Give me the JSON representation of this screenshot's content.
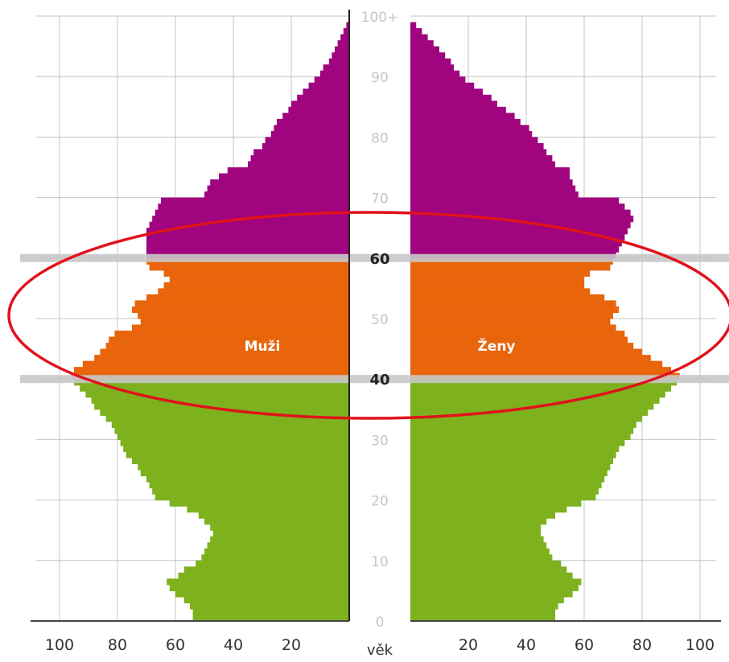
{
  "chart_data": {
    "type": "population-pyramid",
    "left_label": "Muži",
    "right_label": "Ženy",
    "center_axis_label": "věk",
    "x_ticks_left": [
      "100",
      "80",
      "60",
      "40",
      "20"
    ],
    "x_ticks_right": [
      "20",
      "40",
      "60",
      "80",
      "100"
    ],
    "x_tick_values": [
      100,
      80,
      60,
      40,
      20
    ],
    "xlim": [
      0,
      105
    ],
    "age_ticks": [
      "0",
      "10",
      "20",
      "30",
      "40",
      "50",
      "60",
      "70",
      "80",
      "90",
      "100+"
    ],
    "age_tick_values": [
      0,
      10,
      20,
      30,
      40,
      50,
      60,
      70,
      80,
      90,
      100
    ],
    "highlighted_ages": [
      40,
      60
    ],
    "ylim": [
      0,
      100
    ],
    "colors": {
      "ages_0_39": "#7db11e",
      "ages_40_59": "#e8650c",
      "ages_60_plus": "#a0047f",
      "highlight_band": "#c8c8c8",
      "ellipse": "#e0121a",
      "grid": "#c4c4c4"
    },
    "grid": true,
    "annotation": "red ellipse around ages 40–60",
    "ages": [
      0,
      1,
      2,
      3,
      4,
      5,
      6,
      7,
      8,
      9,
      10,
      11,
      12,
      13,
      14,
      15,
      16,
      17,
      18,
      19,
      20,
      21,
      22,
      23,
      24,
      25,
      26,
      27,
      28,
      29,
      30,
      31,
      32,
      33,
      34,
      35,
      36,
      37,
      38,
      39,
      40,
      41,
      42,
      43,
      44,
      45,
      46,
      47,
      48,
      49,
      50,
      51,
      52,
      53,
      54,
      55,
      56,
      57,
      58,
      59,
      60,
      61,
      62,
      63,
      64,
      65,
      66,
      67,
      68,
      69,
      70,
      71,
      72,
      73,
      74,
      75,
      76,
      77,
      78,
      79,
      80,
      81,
      82,
      83,
      84,
      85,
      86,
      87,
      88,
      89,
      90,
      91,
      92,
      93,
      94,
      95,
      96,
      97,
      98,
      99
    ],
    "series": [
      {
        "name": "Muži",
        "values": [
          54,
          54,
          55,
          57,
          60,
          62,
          63,
          59,
          57,
          53,
          51,
          50,
          49,
          48,
          47,
          48,
          50,
          52,
          56,
          62,
          67,
          68,
          69,
          70,
          72,
          73,
          75,
          77,
          78,
          79,
          80,
          81,
          82,
          84,
          86,
          88,
          89,
          91,
          93,
          95,
          96,
          95,
          92,
          88,
          86,
          84,
          83,
          81,
          75,
          72,
          73,
          75,
          74,
          70,
          66,
          64,
          62,
          64,
          69,
          70,
          70,
          70,
          70,
          70,
          70,
          69,
          68,
          67,
          66,
          65,
          50,
          49,
          48,
          45,
          42,
          35,
          34,
          33,
          30,
          29,
          27,
          26,
          25,
          23,
          21,
          20,
          18,
          16,
          14,
          12,
          10,
          9,
          7,
          6,
          5,
          4,
          3,
          2,
          1,
          0
        ]
      },
      {
        "name": "Ženy",
        "values": [
          50,
          50,
          51,
          53,
          56,
          58,
          59,
          56,
          54,
          52,
          49,
          48,
          47,
          46,
          45,
          45,
          47,
          50,
          54,
          59,
          64,
          65,
          66,
          67,
          68,
          69,
          70,
          71,
          72,
          74,
          76,
          77,
          78,
          80,
          82,
          84,
          86,
          88,
          90,
          92,
          93,
          90,
          87,
          83,
          80,
          77,
          75,
          74,
          71,
          69,
          70,
          72,
          71,
          67,
          62,
          60,
          60,
          62,
          69,
          70,
          71,
          72,
          73,
          74,
          75,
          76,
          77,
          76,
          74,
          72,
          58,
          57,
          56,
          55,
          55,
          50,
          49,
          47,
          46,
          44,
          42,
          41,
          38,
          36,
          33,
          30,
          28,
          25,
          22,
          19,
          17,
          15,
          14,
          12,
          10,
          8,
          6,
          4,
          2,
          0
        ]
      }
    ]
  }
}
